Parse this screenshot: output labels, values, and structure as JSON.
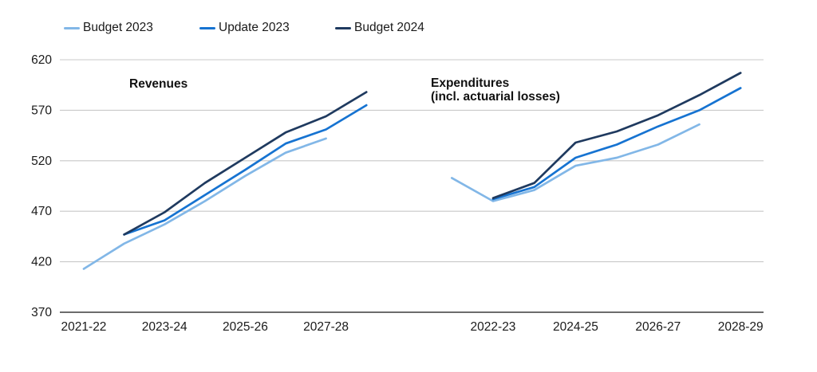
{
  "legend": {
    "items": [
      {
        "label": "Budget 2023",
        "color": "#82B7E7"
      },
      {
        "label": "Update 2023",
        "color": "#1673D1"
      },
      {
        "label": "Budget 2024",
        "color": "#1F3A5F"
      }
    ]
  },
  "chart_data": {
    "type": "line",
    "ylim": [
      370,
      620
    ],
    "yticks": [
      370,
      420,
      470,
      520,
      570,
      620
    ],
    "grid": true,
    "legend_position": "top",
    "colors": {
      "budget_2023": "#82B7E7",
      "update_2023": "#1673D1",
      "budget_2024": "#1F3A5F",
      "gridline": "#c9c9c9",
      "axis_line": "#3c3c3c",
      "tick_text": "#1a1a1a"
    },
    "panels": [
      {
        "title_lines": [
          "Revenues"
        ],
        "categories": [
          "2021-22",
          "2022-23",
          "2023-24",
          "2024-25",
          "2025-26",
          "2026-27",
          "2027-28",
          "2028-29"
        ],
        "x_tick_indices": [
          0,
          2,
          4,
          6
        ],
        "x_tick_labels": [
          "2021-22",
          "2023-24",
          "2025-26",
          "2027-28"
        ],
        "series": [
          {
            "name": "Budget 2023",
            "color": "#82B7E7",
            "values": [
              413,
              438,
              457,
              480,
              505,
              528,
              542,
              null
            ]
          },
          {
            "name": "Update 2023",
            "color": "#1673D1",
            "values": [
              null,
              447,
              461,
              486,
              511,
              537,
              551,
              575
            ]
          },
          {
            "name": "Budget 2024",
            "color": "#1F3A5F",
            "values": [
              null,
              447,
              469,
              498,
              523,
              548,
              564,
              588
            ]
          }
        ]
      },
      {
        "title_lines": [
          "Expenditures",
          "(incl. actuarial losses)"
        ],
        "categories": [
          "2021-22",
          "2022-23",
          "2023-24",
          "2024-25",
          "2025-26",
          "2026-27",
          "2027-28",
          "2028-29"
        ],
        "x_tick_indices": [
          1,
          3,
          5,
          7
        ],
        "x_tick_labels": [
          "2022-23",
          "2024-25",
          "2026-27",
          "2028-29"
        ],
        "series": [
          {
            "name": "Budget 2023",
            "color": "#82B7E7",
            "values": [
              503,
              480,
              491,
              515,
              523,
              536,
              556,
              null
            ]
          },
          {
            "name": "Update 2023",
            "color": "#1673D1",
            "values": [
              null,
              482,
              494,
              523,
              536,
              554,
              570,
              592
            ]
          },
          {
            "name": "Budget 2024",
            "color": "#1F3A5F",
            "values": [
              null,
              483,
              498,
              538,
              549,
              565,
              585,
              607
            ]
          }
        ]
      }
    ]
  }
}
